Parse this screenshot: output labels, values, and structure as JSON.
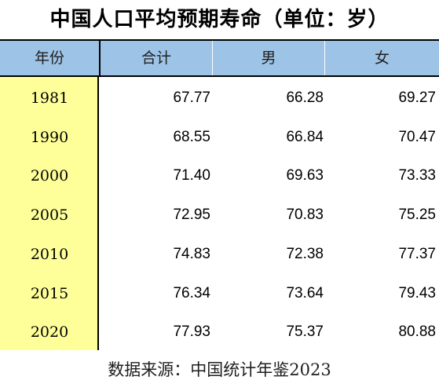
{
  "title": "中国人口平均预期寿命（单位：岁）",
  "source": "数据来源：中国统计年鉴2023",
  "chart_data": {
    "type": "table",
    "columns": [
      "年份",
      "合计",
      "男",
      "女"
    ],
    "rows": [
      [
        "1981",
        "67.77",
        "66.28",
        "69.27"
      ],
      [
        "1990",
        "68.55",
        "66.84",
        "70.47"
      ],
      [
        "2000",
        "71.40",
        "69.63",
        "73.33"
      ],
      [
        "2005",
        "72.95",
        "70.83",
        "75.25"
      ],
      [
        "2010",
        "74.83",
        "72.38",
        "77.37"
      ],
      [
        "2015",
        "76.34",
        "73.64",
        "79.43"
      ],
      [
        "2020",
        "77.93",
        "75.37",
        "80.88"
      ]
    ]
  },
  "colors": {
    "header_bg": "#9dc3e6",
    "year_column_bg": "#ffff99"
  }
}
